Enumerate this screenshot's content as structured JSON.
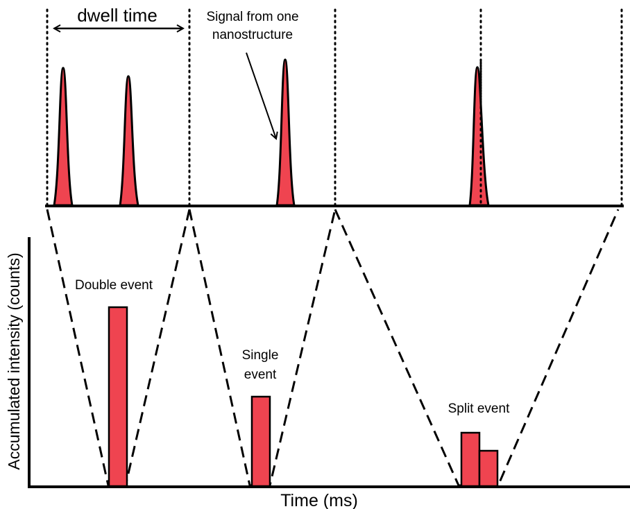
{
  "labels": {
    "dwell_time": "dwell time",
    "signal_line1": "Signal from one",
    "signal_line2": "nanostructure",
    "double_event": "Double event",
    "single_event_line1": "Single",
    "single_event_line2": "event",
    "split_event": "Split event",
    "ylabel": "Accumulated intensity (counts)",
    "xlabel": "Time (ms)"
  },
  "colors": {
    "fill": "#ef4450",
    "outline": "#000000"
  },
  "chart_data": {
    "type": "bar",
    "groups": [
      {
        "name": "Double event",
        "bars": [
          0.72
        ]
      },
      {
        "name": "Single event",
        "bars": [
          0.35
        ]
      },
      {
        "name": "Split event",
        "bars": [
          0.22,
          0.15
        ]
      }
    ]
  }
}
